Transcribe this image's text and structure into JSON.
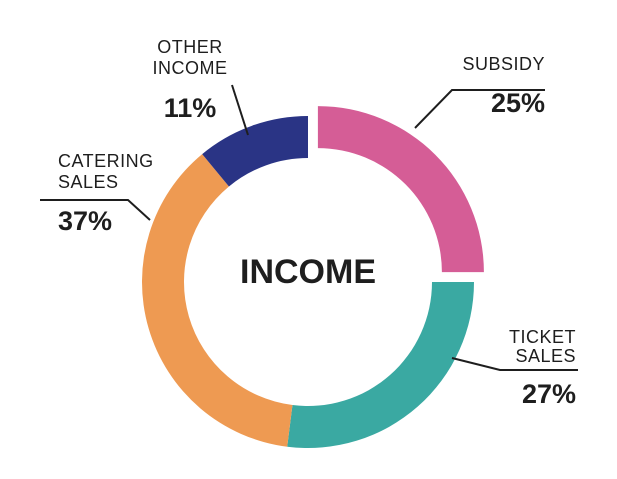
{
  "chart_data": {
    "type": "pie",
    "title": "INCOME",
    "categories": [
      "SUBSIDY",
      "TICKET SALES",
      "CATERING SALES",
      "OTHER INCOME"
    ],
    "values": [
      25,
      27,
      37,
      11
    ],
    "labels": [
      {
        "name_lines": [
          "SUBSIDY"
        ],
        "percent": "25%"
      },
      {
        "name_lines": [
          "TICKET",
          "SALES"
        ],
        "percent": "27%"
      },
      {
        "name_lines": [
          "CATERING",
          "SALES"
        ],
        "percent": "37%"
      },
      {
        "name_lines": [
          "OTHER",
          "INCOME"
        ],
        "percent": "11%"
      }
    ],
    "colors": [
      "#d55d96",
      "#3aa9a2",
      "#ee9a52",
      "#2a3485"
    ],
    "donut": true,
    "legend": "none"
  }
}
